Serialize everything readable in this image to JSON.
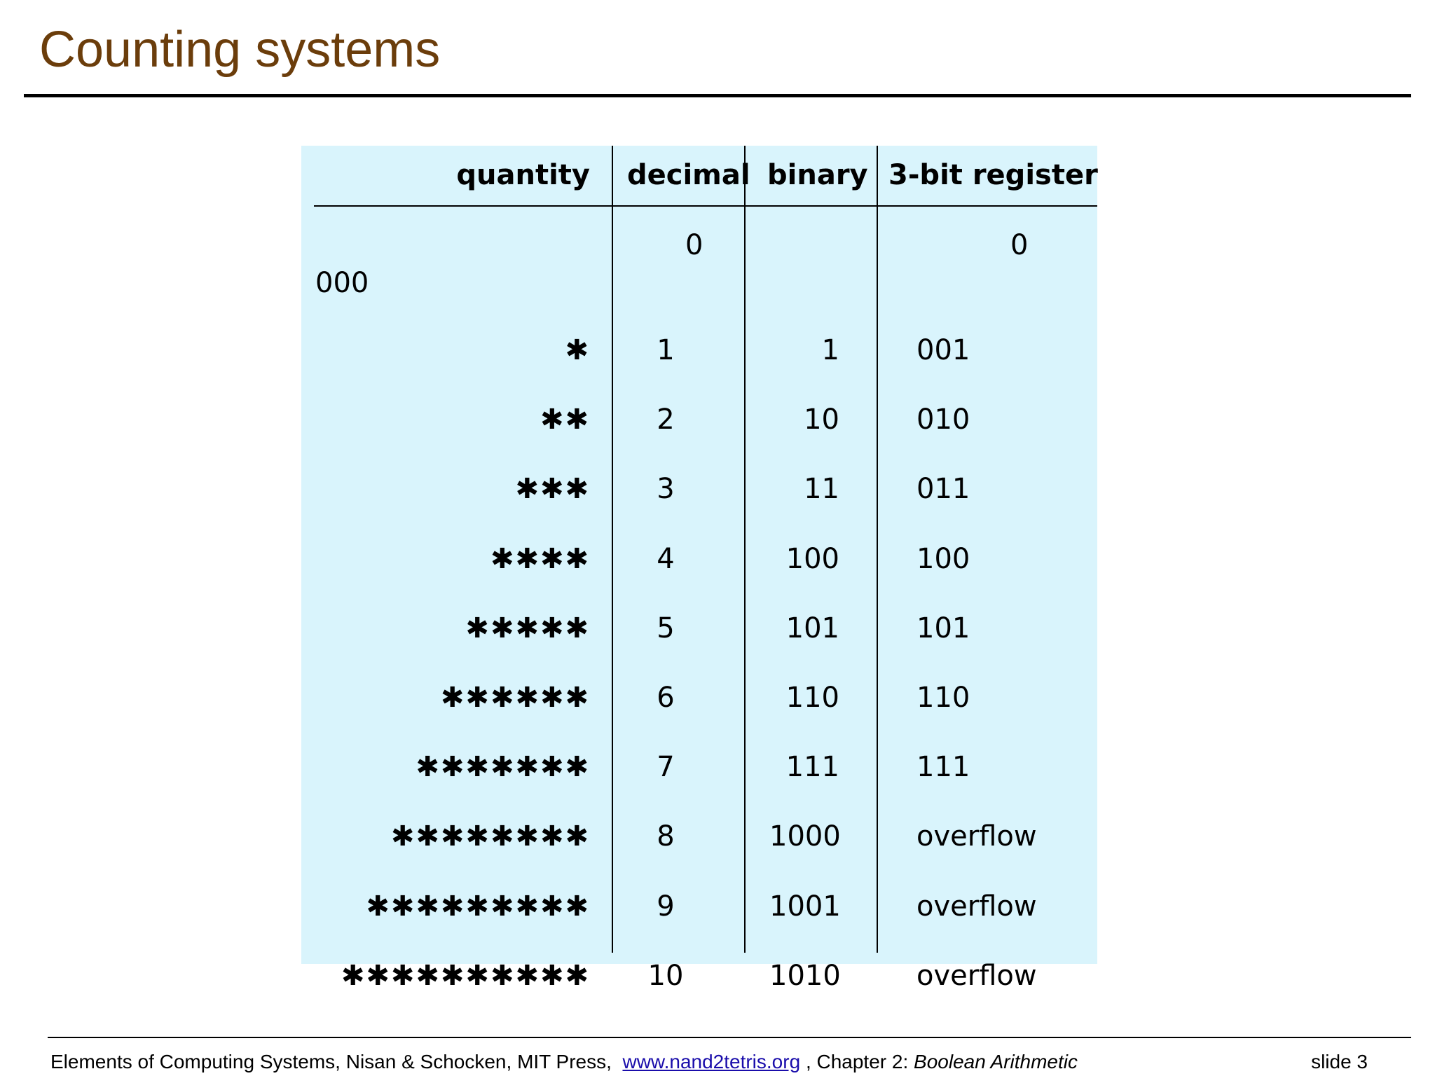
{
  "slide": {
    "title": "Counting systems"
  },
  "table": {
    "headers": {
      "quantity": "quantity",
      "decimal": "decimal",
      "binary": "binary",
      "register": "3-bit register"
    },
    "row0": {
      "decimal": "0",
      "register": "0",
      "wrapped": "000"
    },
    "rows": [
      {
        "quantity": "✱",
        "decimal": "1",
        "binary": "1",
        "register": "001"
      },
      {
        "quantity": "✱✱",
        "decimal": "2",
        "binary": "10",
        "register": "010"
      },
      {
        "quantity": "✱✱✱",
        "decimal": "3",
        "binary": "11",
        "register": "011"
      },
      {
        "quantity": "✱✱✱✱",
        "decimal": "4",
        "binary": "100",
        "register": "100"
      },
      {
        "quantity": "✱✱✱✱✱",
        "decimal": "5",
        "binary": "101",
        "register": "101"
      },
      {
        "quantity": "✱✱✱✱✱✱",
        "decimal": "6",
        "binary": "110",
        "register": "110"
      },
      {
        "quantity": "✱✱✱✱✱✱✱",
        "decimal": "7",
        "binary": "111",
        "register": "111"
      },
      {
        "quantity": "✱✱✱✱✱✱✱✱",
        "decimal": "8",
        "binary": "1000",
        "register": "overflow"
      },
      {
        "quantity": "✱✱✱✱✱✱✱✱✱",
        "decimal": "9",
        "binary": "1001",
        "register": "overflow"
      },
      {
        "quantity": "✱✱✱✱✱✱✱✱✱✱",
        "decimal": "10",
        "binary": "1010",
        "register": "overflow"
      }
    ]
  },
  "footer": {
    "text_before": "Elements of Computing Systems, Nisan & Schocken, MIT Press,",
    "link": "www.nand2tetris.org",
    "text_middle": ", Chapter 2:",
    "chapter": "Boolean Arithmetic",
    "slide_number": "slide 3"
  }
}
